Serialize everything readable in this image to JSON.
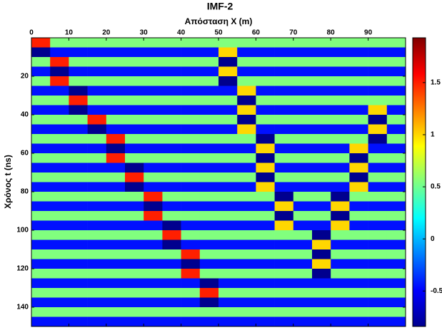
{
  "chart_data": {
    "type": "heatmap",
    "title": "IMF-2",
    "x_label": "Απόσταση X (m)",
    "y_label": "Χρόνος t (ns)",
    "colormap": "jet",
    "xlim": [
      0,
      100
    ],
    "ylim": [
      0,
      150
    ],
    "y_reversed": true,
    "xticks": [
      0,
      10,
      20,
      30,
      40,
      50,
      60,
      70,
      80,
      90
    ],
    "yticks": [
      20,
      40,
      60,
      80,
      100,
      120,
      140
    ],
    "clim": [
      -0.84,
      1.93
    ],
    "cticks": [
      -0.5,
      0,
      0.5,
      1,
      1.5
    ],
    "xbins": [
      0,
      5,
      10,
      15,
      20,
      25,
      30,
      35,
      40,
      45,
      50,
      55,
      60,
      65,
      70,
      75,
      80,
      85,
      90,
      95,
      100
    ],
    "ybins": [
      0,
      5,
      10,
      15,
      20,
      25,
      30,
      35,
      40,
      45,
      50,
      55,
      60,
      65,
      70,
      75,
      80,
      85,
      90,
      95,
      100,
      105,
      110,
      115,
      120,
      125,
      130,
      135,
      140,
      145,
      150
    ],
    "z": [
      [
        1.5,
        0.55,
        0.55,
        0.55,
        0.55,
        0.55,
        0.55,
        0.55,
        0.55,
        0.55,
        0.55,
        0.55,
        0.55,
        0.55,
        0.55,
        0.55,
        0.55,
        0.55,
        0.55,
        0.55
      ],
      [
        -0.8,
        -0.45,
        -0.45,
        -0.45,
        -0.45,
        -0.45,
        -0.45,
        -0.45,
        -0.45,
        -0.45,
        1.0,
        -0.45,
        -0.45,
        -0.45,
        -0.45,
        -0.45,
        -0.45,
        -0.45,
        -0.45,
        -0.45
      ],
      [
        0.55,
        1.5,
        0.55,
        0.55,
        0.55,
        0.55,
        0.55,
        0.55,
        0.55,
        0.55,
        -0.8,
        0.55,
        0.55,
        0.55,
        0.55,
        0.55,
        0.55,
        0.55,
        0.55,
        0.55
      ],
      [
        -0.45,
        -0.8,
        -0.45,
        -0.45,
        -0.45,
        -0.45,
        -0.45,
        -0.45,
        -0.45,
        -0.45,
        1.0,
        -0.45,
        -0.45,
        -0.45,
        -0.45,
        -0.45,
        -0.45,
        -0.45,
        -0.45,
        -0.45
      ],
      [
        0.55,
        1.5,
        0.55,
        0.55,
        0.55,
        0.55,
        0.55,
        0.55,
        0.55,
        0.55,
        -0.8,
        0.55,
        0.55,
        0.55,
        0.55,
        0.55,
        0.55,
        0.55,
        0.55,
        0.55
      ],
      [
        -0.45,
        -0.45,
        -0.8,
        -0.45,
        -0.45,
        -0.45,
        -0.45,
        -0.45,
        -0.45,
        -0.45,
        -0.45,
        1.0,
        -0.45,
        -0.45,
        -0.45,
        -0.45,
        -0.45,
        -0.45,
        -0.45,
        -0.45
      ],
      [
        0.55,
        0.55,
        1.5,
        0.55,
        0.55,
        0.55,
        0.55,
        0.55,
        0.55,
        0.55,
        0.55,
        -0.8,
        0.55,
        0.55,
        0.55,
        0.55,
        0.55,
        0.55,
        0.55,
        0.55
      ],
      [
        -0.45,
        -0.45,
        -0.8,
        -0.45,
        -0.45,
        -0.45,
        -0.45,
        -0.45,
        -0.45,
        -0.45,
        -0.45,
        1.0,
        -0.45,
        -0.45,
        -0.45,
        -0.45,
        -0.45,
        -0.45,
        1.0,
        -0.45
      ],
      [
        0.55,
        0.55,
        0.55,
        1.5,
        0.55,
        0.55,
        0.55,
        0.55,
        0.55,
        0.55,
        0.55,
        -0.8,
        0.55,
        0.55,
        0.55,
        0.55,
        0.55,
        0.55,
        -0.8,
        0.55
      ],
      [
        -0.45,
        -0.45,
        -0.45,
        -0.8,
        -0.45,
        -0.45,
        -0.45,
        -0.45,
        -0.45,
        -0.45,
        -0.45,
        1.0,
        -0.45,
        -0.45,
        -0.45,
        -0.45,
        -0.45,
        -0.45,
        1.0,
        -0.45
      ],
      [
        0.55,
        0.55,
        0.55,
        0.55,
        1.5,
        0.55,
        0.55,
        0.55,
        0.55,
        0.55,
        0.55,
        0.55,
        -0.8,
        0.55,
        0.55,
        0.55,
        0.55,
        0.55,
        -0.8,
        0.55
      ],
      [
        -0.45,
        -0.45,
        -0.45,
        -0.45,
        -0.8,
        -0.45,
        -0.45,
        -0.45,
        -0.45,
        -0.45,
        -0.45,
        -0.45,
        1.0,
        -0.45,
        -0.45,
        -0.45,
        -0.45,
        1.0,
        -0.45,
        -0.45
      ],
      [
        0.55,
        0.55,
        0.55,
        0.55,
        1.5,
        0.55,
        0.55,
        0.55,
        0.55,
        0.55,
        0.55,
        0.55,
        -0.8,
        0.55,
        0.55,
        0.55,
        0.55,
        -0.8,
        0.55,
        0.55
      ],
      [
        -0.45,
        -0.45,
        -0.45,
        -0.45,
        -0.45,
        -0.8,
        -0.45,
        -0.45,
        -0.45,
        -0.45,
        -0.45,
        -0.45,
        1.0,
        -0.45,
        -0.45,
        -0.45,
        -0.45,
        1.0,
        -0.45,
        -0.45
      ],
      [
        0.55,
        0.55,
        0.55,
        0.55,
        0.55,
        1.5,
        0.55,
        0.55,
        0.55,
        0.55,
        0.55,
        0.55,
        -0.8,
        0.55,
        0.55,
        0.55,
        0.55,
        -0.8,
        0.55,
        0.55
      ],
      [
        -0.45,
        -0.45,
        -0.45,
        -0.45,
        -0.45,
        -0.8,
        -0.45,
        -0.45,
        -0.45,
        -0.45,
        -0.45,
        -0.45,
        1.0,
        -0.45,
        -0.45,
        -0.45,
        -0.45,
        1.0,
        -0.45,
        -0.45
      ],
      [
        0.55,
        0.55,
        0.55,
        0.55,
        0.55,
        0.55,
        1.5,
        0.55,
        0.55,
        0.55,
        0.55,
        0.55,
        0.55,
        -0.8,
        0.55,
        0.55,
        -0.8,
        0.55,
        0.55,
        0.55
      ],
      [
        -0.45,
        -0.45,
        -0.45,
        -0.45,
        -0.45,
        -0.45,
        -0.8,
        -0.45,
        -0.45,
        -0.45,
        -0.45,
        -0.45,
        -0.45,
        1.0,
        -0.45,
        -0.45,
        1.0,
        -0.45,
        -0.45,
        -0.45
      ],
      [
        0.55,
        0.55,
        0.55,
        0.55,
        0.55,
        0.55,
        1.5,
        0.55,
        0.55,
        0.55,
        0.55,
        0.55,
        0.55,
        -0.8,
        0.55,
        0.55,
        -0.8,
        0.55,
        0.55,
        0.55
      ],
      [
        -0.45,
        -0.45,
        -0.45,
        -0.45,
        -0.45,
        -0.45,
        -0.45,
        -0.8,
        -0.45,
        -0.45,
        -0.45,
        -0.45,
        -0.45,
        1.0,
        -0.45,
        -0.45,
        1.0,
        -0.45,
        -0.45,
        -0.45
      ],
      [
        0.55,
        0.55,
        0.55,
        0.55,
        0.55,
        0.55,
        0.55,
        1.5,
        0.55,
        0.55,
        0.55,
        0.55,
        0.55,
        0.55,
        0.55,
        -0.8,
        0.55,
        0.55,
        0.55,
        0.55
      ],
      [
        -0.45,
        -0.45,
        -0.45,
        -0.45,
        -0.45,
        -0.45,
        -0.45,
        -0.8,
        -0.45,
        -0.45,
        -0.45,
        -0.45,
        -0.45,
        -0.45,
        -0.45,
        1.0,
        -0.45,
        -0.45,
        -0.45,
        -0.45
      ],
      [
        0.55,
        0.55,
        0.55,
        0.55,
        0.55,
        0.55,
        0.55,
        0.55,
        1.5,
        0.55,
        0.55,
        0.55,
        0.55,
        0.55,
        0.55,
        -0.8,
        0.55,
        0.55,
        0.55,
        0.55
      ],
      [
        -0.45,
        -0.45,
        -0.45,
        -0.45,
        -0.45,
        -0.45,
        -0.45,
        -0.45,
        -0.8,
        -0.45,
        -0.45,
        -0.45,
        -0.45,
        -0.45,
        -0.45,
        1.0,
        -0.45,
        -0.45,
        -0.45,
        -0.45
      ],
      [
        0.55,
        0.55,
        0.55,
        0.55,
        0.55,
        0.55,
        0.55,
        0.55,
        1.5,
        0.55,
        0.55,
        0.55,
        0.55,
        0.55,
        0.55,
        -0.8,
        0.55,
        0.55,
        0.55,
        0.55
      ],
      [
        -0.45,
        -0.45,
        -0.45,
        -0.45,
        -0.45,
        -0.45,
        -0.45,
        -0.45,
        -0.45,
        -0.8,
        -0.45,
        -0.45,
        -0.45,
        -0.45,
        -0.45,
        -0.45,
        -0.45,
        -0.45,
        -0.45,
        -0.45
      ],
      [
        0.55,
        0.55,
        0.55,
        0.55,
        0.55,
        0.55,
        0.55,
        0.55,
        0.55,
        1.5,
        0.55,
        0.55,
        0.55,
        0.55,
        0.55,
        0.55,
        0.55,
        0.55,
        0.55,
        0.55
      ],
      [
        -0.45,
        -0.45,
        -0.45,
        -0.45,
        -0.45,
        -0.45,
        -0.45,
        -0.45,
        -0.45,
        -0.8,
        -0.45,
        -0.45,
        -0.45,
        -0.45,
        -0.45,
        -0.45,
        -0.45,
        -0.45,
        -0.45,
        -0.45
      ],
      [
        0.55,
        0.55,
        0.55,
        0.55,
        0.55,
        0.55,
        0.55,
        0.55,
        0.55,
        0.55,
        0.55,
        0.55,
        0.55,
        0.55,
        0.55,
        0.55,
        0.55,
        0.55,
        0.55,
        0.55
      ],
      [
        -0.45,
        -0.45,
        -0.45,
        -0.45,
        -0.45,
        -0.45,
        -0.45,
        -0.45,
        -0.45,
        -0.45,
        -0.45,
        -0.45,
        -0.45,
        -0.45,
        -0.45,
        -0.45,
        -0.45,
        -0.45,
        -0.45,
        -0.45
      ]
    ]
  }
}
